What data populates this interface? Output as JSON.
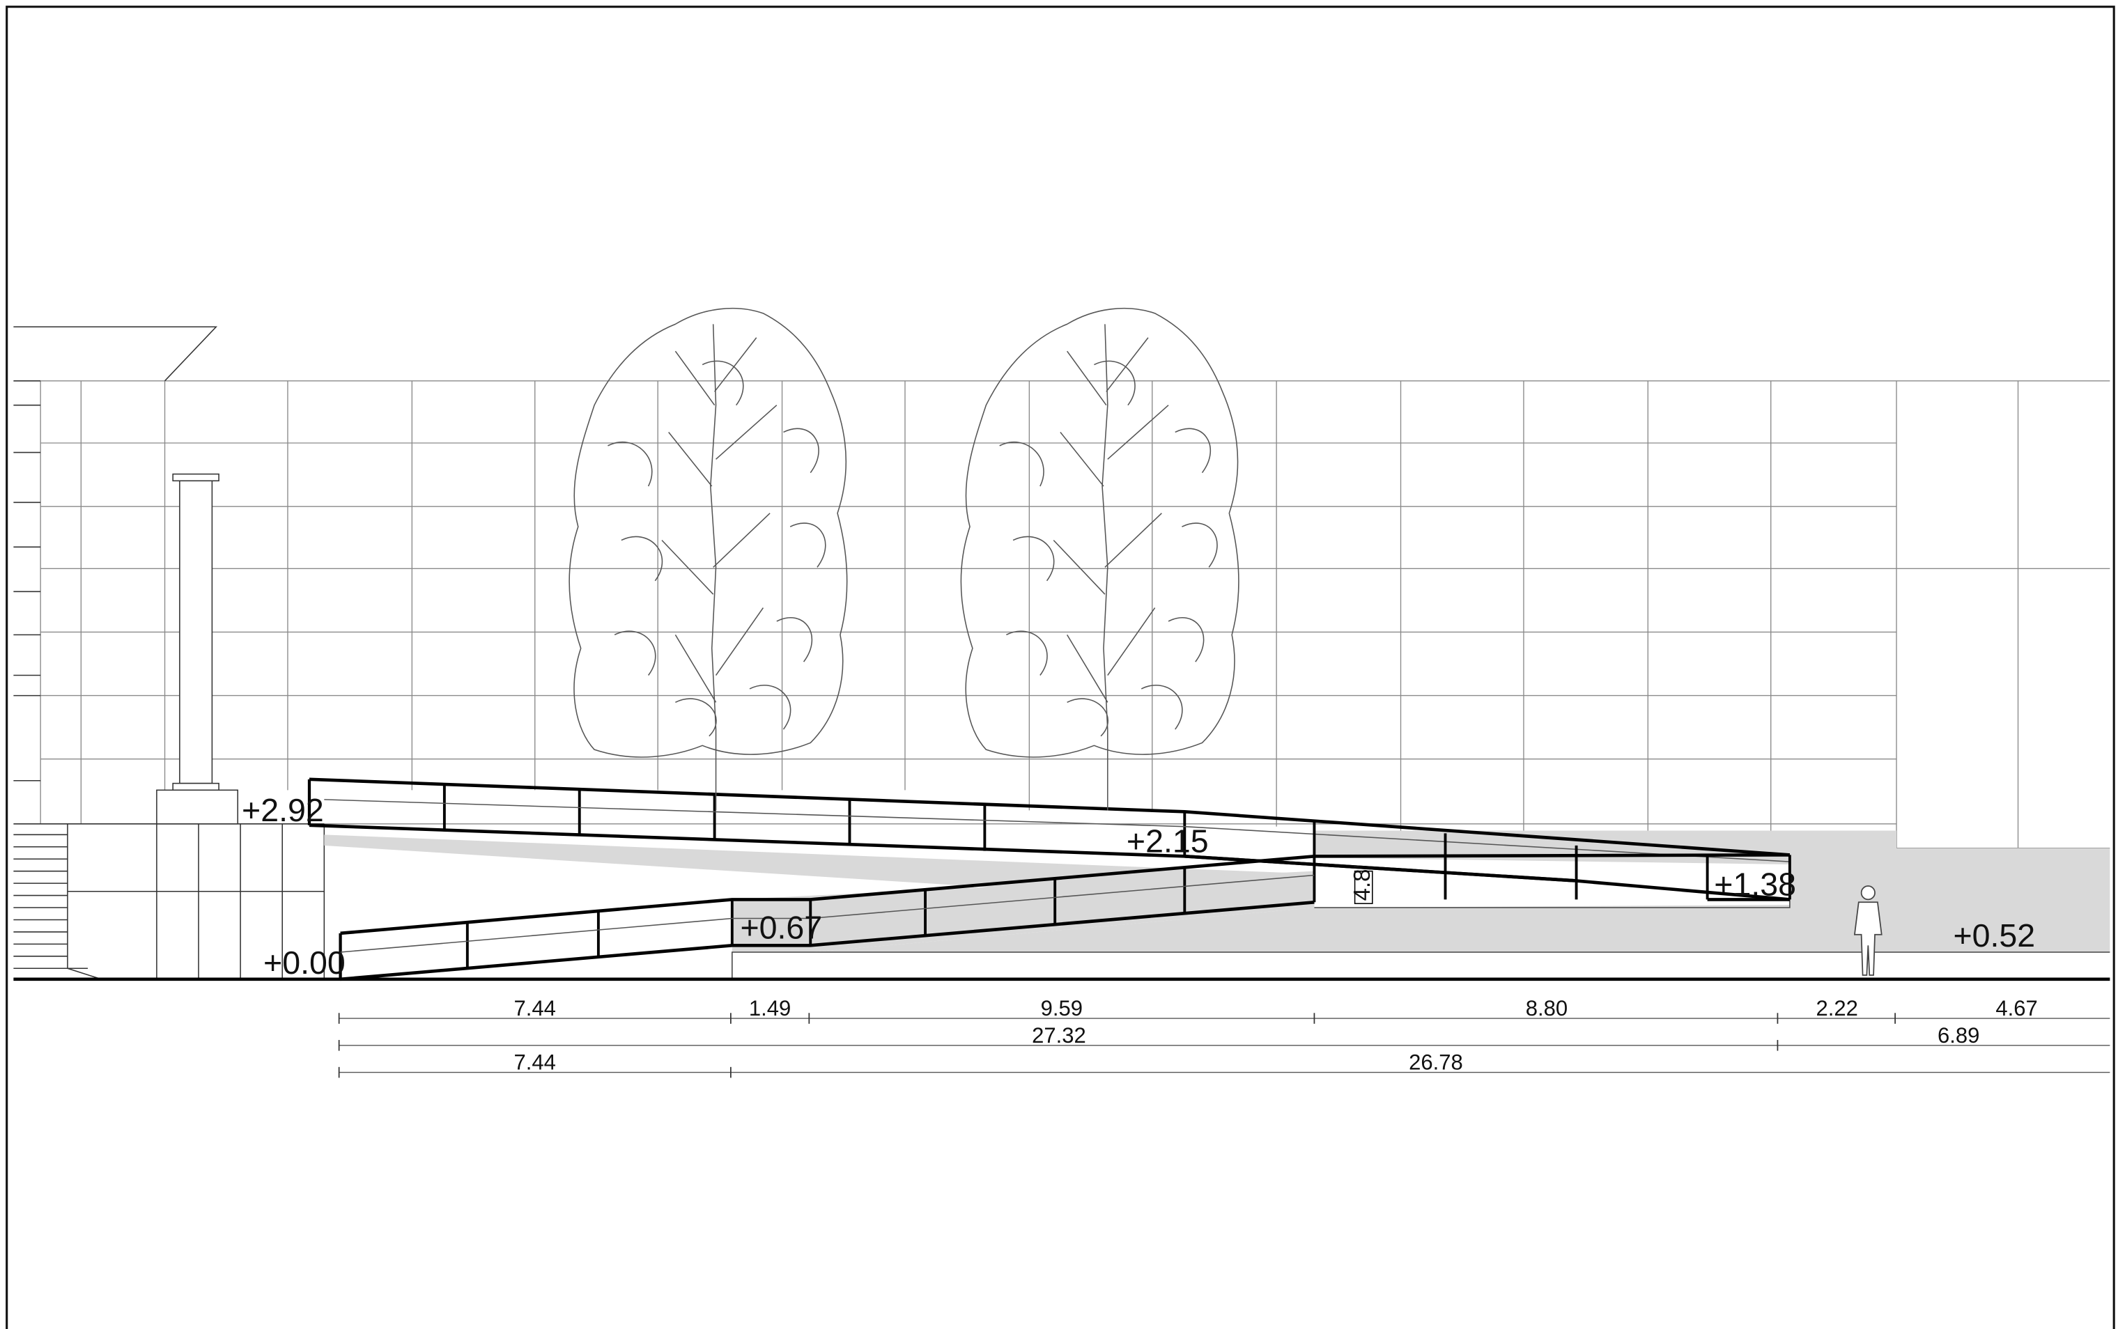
{
  "levels": {
    "l_292": "+2.92",
    "l_215": "+2.15",
    "l_138": "+1.38",
    "l_067": "+0.67",
    "l_000": "+0.00",
    "l_052": "+0.52"
  },
  "slope_label": "4.8'",
  "dimensions": {
    "row1": [
      "7.44",
      "1.49",
      "9.59",
      "8.80",
      "2.22",
      "4.67"
    ],
    "row2": [
      "27.32",
      "6.89"
    ],
    "row3": [
      "7.44",
      "26.78"
    ]
  }
}
